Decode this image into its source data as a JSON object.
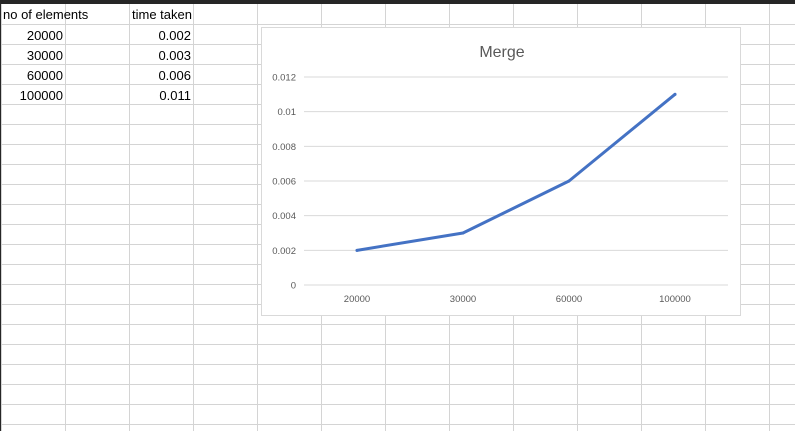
{
  "sheet": {
    "headers": [
      "no of elements",
      "time taken"
    ],
    "rows": [
      [
        "20000",
        "0.002"
      ],
      [
        "30000",
        "0.003"
      ],
      [
        "60000",
        "0.006"
      ],
      [
        "100000",
        "0.011"
      ]
    ]
  },
  "chart_data": {
    "type": "line",
    "title": "Merge",
    "categories": [
      "20000",
      "30000",
      "60000",
      "100000"
    ],
    "series": [
      {
        "values": [
          0.002,
          0.003,
          0.006,
          0.011
        ]
      }
    ],
    "y_ticks": [
      "0",
      "0.002",
      "0.004",
      "0.006",
      "0.008",
      "0.01",
      "0.012"
    ],
    "ylim": [
      0,
      0.012
    ],
    "grid": "horizontal",
    "legend": "none",
    "line_color": "#4472c4"
  }
}
